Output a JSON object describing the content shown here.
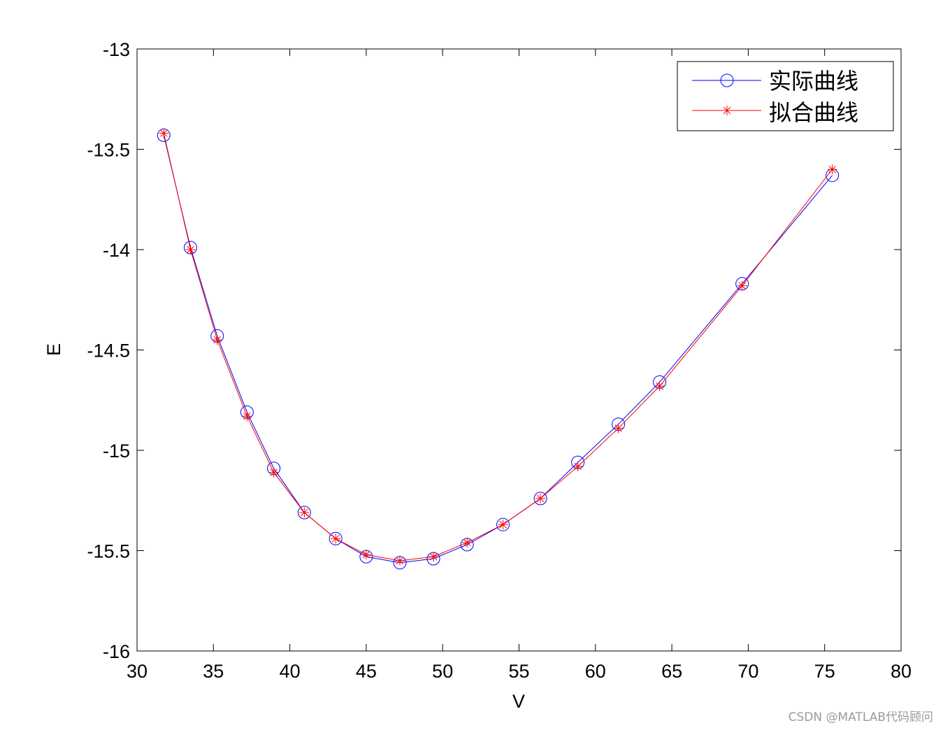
{
  "chart_data": {
    "type": "line",
    "title": "",
    "xlabel": "V",
    "ylabel": "E",
    "xlim": [
      30,
      80
    ],
    "ylim": [
      -16,
      -13
    ],
    "x_ticks": [
      30,
      35,
      40,
      45,
      50,
      55,
      60,
      65,
      70,
      75,
      80
    ],
    "y_ticks": [
      -13,
      -13.5,
      -14,
      -14.5,
      -15,
      -15.5,
      -16
    ],
    "grid": false,
    "legend_position": "top-right",
    "series": [
      {
        "name": "实际曲线",
        "color": "#0000ff",
        "marker": "circle",
        "x": [
          31.75,
          33.5,
          35.25,
          37.2,
          38.95,
          40.95,
          43.0,
          45.0,
          47.2,
          49.4,
          51.6,
          53.95,
          56.4,
          58.85,
          61.5,
          64.2,
          69.6,
          75.5
        ],
        "y": [
          -13.43,
          -13.99,
          -14.43,
          -14.81,
          -15.09,
          -15.31,
          -15.44,
          -15.53,
          -15.56,
          -15.54,
          -15.47,
          -15.37,
          -15.24,
          -15.06,
          -14.87,
          -14.66,
          -14.17,
          -13.63
        ]
      },
      {
        "name": "拟合曲线",
        "color": "#ff0000",
        "marker": "asterisk",
        "x": [
          31.75,
          33.5,
          35.25,
          37.2,
          38.95,
          40.95,
          43.0,
          45.0,
          47.2,
          49.4,
          51.6,
          53.95,
          56.4,
          58.85,
          61.5,
          64.2,
          69.6,
          75.5
        ],
        "y": [
          -13.42,
          -14.0,
          -14.45,
          -14.83,
          -15.11,
          -15.31,
          -15.44,
          -15.52,
          -15.55,
          -15.53,
          -15.46,
          -15.37,
          -15.24,
          -15.08,
          -14.89,
          -14.68,
          -14.18,
          -13.6
        ]
      }
    ]
  },
  "watermark": "CSDN @MATLAB代码顾问"
}
